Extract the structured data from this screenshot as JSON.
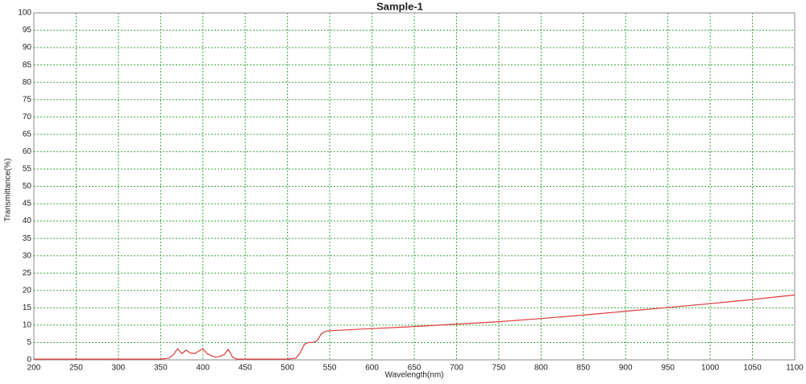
{
  "chart_data": {
    "type": "line",
    "title": "Sample-1",
    "x_label": "Wavelength(nm)",
    "y_label": "Transmittance(%)",
    "x": [
      200,
      350,
      360,
      365,
      370,
      375,
      380,
      385,
      390,
      395,
      400,
      405,
      410,
      415,
      420,
      425,
      430,
      435,
      440,
      500,
      510,
      515,
      520,
      525,
      530,
      535,
      540,
      545,
      550,
      600,
      650,
      700,
      750,
      800,
      850,
      900,
      950,
      1000,
      1050,
      1100
    ],
    "values": [
      0.2,
      0.2,
      0.5,
      1.5,
      3.2,
      1.8,
      2.8,
      2.0,
      1.8,
      2.5,
      3.2,
      1.8,
      1.2,
      0.8,
      1.0,
      1.5,
      3.0,
      0.8,
      0.2,
      0.2,
      0.5,
      2.0,
      4.5,
      5.0,
      5.0,
      5.5,
      7.5,
      8.2,
      8.4,
      9.0,
      9.6,
      10.3,
      11.0,
      11.9,
      12.9,
      14.0,
      15.1,
      16.2,
      17.4,
      18.7
    ],
    "color": "#e03a3a",
    "xlim": [
      200,
      1100
    ],
    "ylim": [
      0,
      100
    ],
    "xticks": [
      200,
      250,
      300,
      350,
      400,
      450,
      500,
      550,
      600,
      650,
      700,
      750,
      800,
      850,
      900,
      950,
      1000,
      1050,
      1100
    ],
    "yticks": [
      0,
      5,
      10,
      15,
      20,
      25,
      30,
      35,
      40,
      45,
      50,
      55,
      60,
      65,
      70,
      75,
      80,
      85,
      90,
      95,
      100
    ],
    "grid": true
  }
}
